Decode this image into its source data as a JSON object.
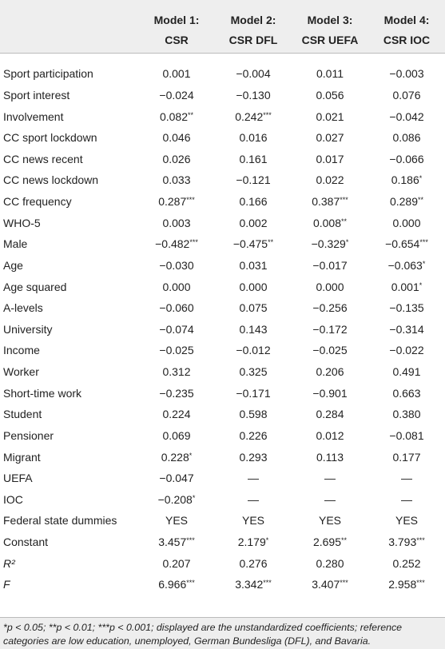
{
  "table": {
    "columns": [
      {
        "model": "Model 1:",
        "name": "CSR"
      },
      {
        "model": "Model 2:",
        "name": "CSR DFL"
      },
      {
        "model": "Model 3:",
        "name": "CSR UEFA"
      },
      {
        "model": "Model 4:",
        "name": "CSR IOC"
      }
    ],
    "rows": [
      [
        "Sport participation",
        "0.001",
        "−0.004",
        "0.011",
        "−0.003"
      ],
      [
        "Sport interest",
        "−0.024",
        "−0.130",
        "0.056",
        "0.076"
      ],
      [
        "Involvement",
        "0.082**",
        "0.242***",
        "0.021",
        "−0.042"
      ],
      [
        "CC sport lockdown",
        "0.046",
        "0.016",
        "0.027",
        "0.086"
      ],
      [
        "CC news recent",
        "0.026",
        "0.161",
        "0.017",
        "−0.066"
      ],
      [
        "CC news lockdown",
        "0.033",
        "−0.121",
        "0.022",
        "0.186*"
      ],
      [
        "CC frequency",
        "0.287***",
        "0.166",
        "0.387***",
        "0.289**"
      ],
      [
        "WHO-5",
        "0.003",
        "0.002",
        "0.008**",
        "0.000"
      ],
      [
        "Male",
        "−0.482***",
        "−0.475**",
        "−0.329*",
        "−0.654***"
      ],
      [
        "Age",
        "−0.030",
        "0.031",
        "−0.017",
        "−0.063*"
      ],
      [
        "Age squared",
        "0.000",
        "0.000",
        "0.000",
        "0.001*"
      ],
      [
        "A-levels",
        "−0.060",
        "0.075",
        "−0.256",
        "−0.135"
      ],
      [
        "University",
        "−0.074",
        "0.143",
        "−0.172",
        "−0.314"
      ],
      [
        "Income",
        "−0.025",
        "−0.012",
        "−0.025",
        "−0.022"
      ],
      [
        "Worker",
        "0.312",
        "0.325",
        "0.206",
        "0.491"
      ],
      [
        "Short-time work",
        "−0.235",
        "−0.171",
        "−0.901",
        "0.663"
      ],
      [
        "Student",
        "0.224",
        "0.598",
        "0.284",
        "0.380"
      ],
      [
        "Pensioner",
        "0.069",
        "0.226",
        "0.012",
        "−0.081"
      ],
      [
        "Migrant",
        "0.228*",
        "0.293",
        "0.113",
        "0.177"
      ],
      [
        "UEFA",
        "−0.047",
        "—",
        "—",
        "—"
      ],
      [
        "IOC",
        "−0.208*",
        "—",
        "—",
        "—"
      ],
      [
        "Federal state dummies",
        "YES",
        "YES",
        "YES",
        "YES"
      ],
      [
        "Constant",
        "3.457***",
        "2.179*",
        "2.695**",
        "3.793***"
      ],
      [
        "R²",
        "0.207",
        "0.276",
        "0.280",
        "0.252"
      ],
      [
        "F",
        "6.966***",
        "3.342***",
        "3.407***",
        "2.958***"
      ]
    ],
    "italic_labels": [
      "R²",
      "F"
    ],
    "footnote": "*p < 0.05; **p < 0.01; ***p < 0.001; displayed are the unstandardized coefficients; reference categories are low education, unemployed, German Bundesliga (DFL), and Bavaria."
  }
}
